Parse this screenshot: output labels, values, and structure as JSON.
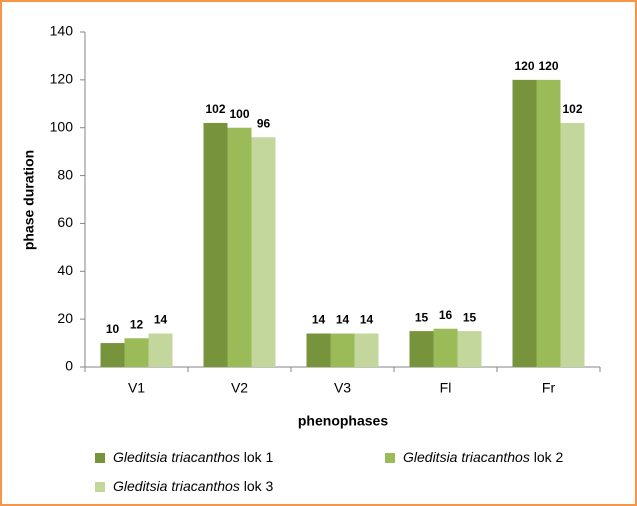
{
  "chart_data": {
    "type": "bar",
    "categories": [
      "V1",
      "V2",
      "V3",
      "Fl",
      "Fr"
    ],
    "series": [
      {
        "name": "Gleditsia triacanthos lok 1",
        "color": "#77933c",
        "values": [
          10,
          102,
          14,
          15,
          120
        ]
      },
      {
        "name": "Gleditsia triacanthos lok 2",
        "color": "#9bbb59",
        "values": [
          12,
          100,
          14,
          16,
          120
        ]
      },
      {
        "name": "Gleditsia triacanthos lok 3",
        "color": "#c3d69b",
        "values": [
          14,
          96,
          14,
          15,
          102
        ]
      }
    ],
    "xlabel": "phenophases",
    "ylabel": "phase duration",
    "ylim": [
      0,
      140
    ],
    "yticks": [
      0,
      20,
      40,
      60,
      80,
      100,
      120,
      140
    ],
    "grid": false,
    "legend": "bottom"
  }
}
